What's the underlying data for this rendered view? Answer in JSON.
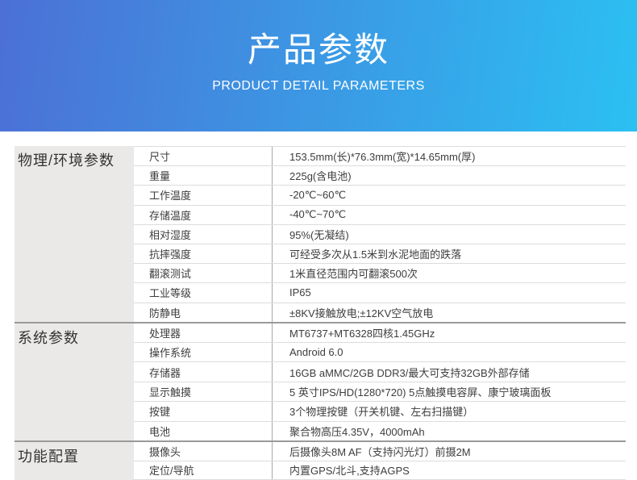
{
  "banner": {
    "title": "产品参数",
    "subtitle": "PRODUCT DETAIL PARAMETERS",
    "gradient_left": "#4c70d6",
    "gradient_right": "#2bc0f2",
    "text_color": "#ffffff"
  },
  "table": {
    "side_bg": "#eae9e7",
    "section_divider_color": "#9a9a9a",
    "row_divider_color": "#dcdcdc",
    "sections": [
      {
        "header": "物理/环境参数",
        "rows": [
          {
            "name": "尺寸",
            "value": "153.5mm(长)*76.3mm(宽)*14.65mm(厚)"
          },
          {
            "name": "重量",
            "value": "225g(含电池)"
          },
          {
            "name": "工作温度",
            "value": "-20℃~60℃"
          },
          {
            "name": "存储温度",
            "value": "-40℃~70℃"
          },
          {
            "name": "相对湿度",
            "value": "95%(无凝结)"
          },
          {
            "name": "抗摔强度",
            "value": "可经受多次从1.5米到水泥地面的跌落"
          },
          {
            "name": "翻滚测试",
            "value": "1米直径范围内可翻滚500次"
          },
          {
            "name": "工业等级",
            "value": "IP65"
          },
          {
            "name": "防静电",
            "value": "±8KV接触放电;±12KV空气放电"
          }
        ]
      },
      {
        "header": "系统参数",
        "rows": [
          {
            "name": "处理器",
            "value": "MT6737+MT6328四核1.45GHz"
          },
          {
            "name": "操作系统",
            "value": "Android 6.0"
          },
          {
            "name": "存储器",
            "value": "16GB aMMC/2GB DDR3/最大可支持32GB外部存储"
          },
          {
            "name": "显示触摸",
            "value": "5 英寸IPS/HD(1280*720)  5点触摸电容屏、康宁玻璃面板"
          },
          {
            "name": "按键",
            "value": "3个物理按键（开关机键、左右扫描键）"
          },
          {
            "name": "电池",
            "value": "聚合物高压4.35V，4000mAh"
          }
        ]
      },
      {
        "header": "功能配置",
        "rows": [
          {
            "name": "摄像头",
            "value": "后摄像头8M AF（支持闪光灯）前摄2M"
          },
          {
            "name": "定位/导航",
            "value": "内置GPS/北斗,支持AGPS"
          }
        ]
      }
    ]
  }
}
